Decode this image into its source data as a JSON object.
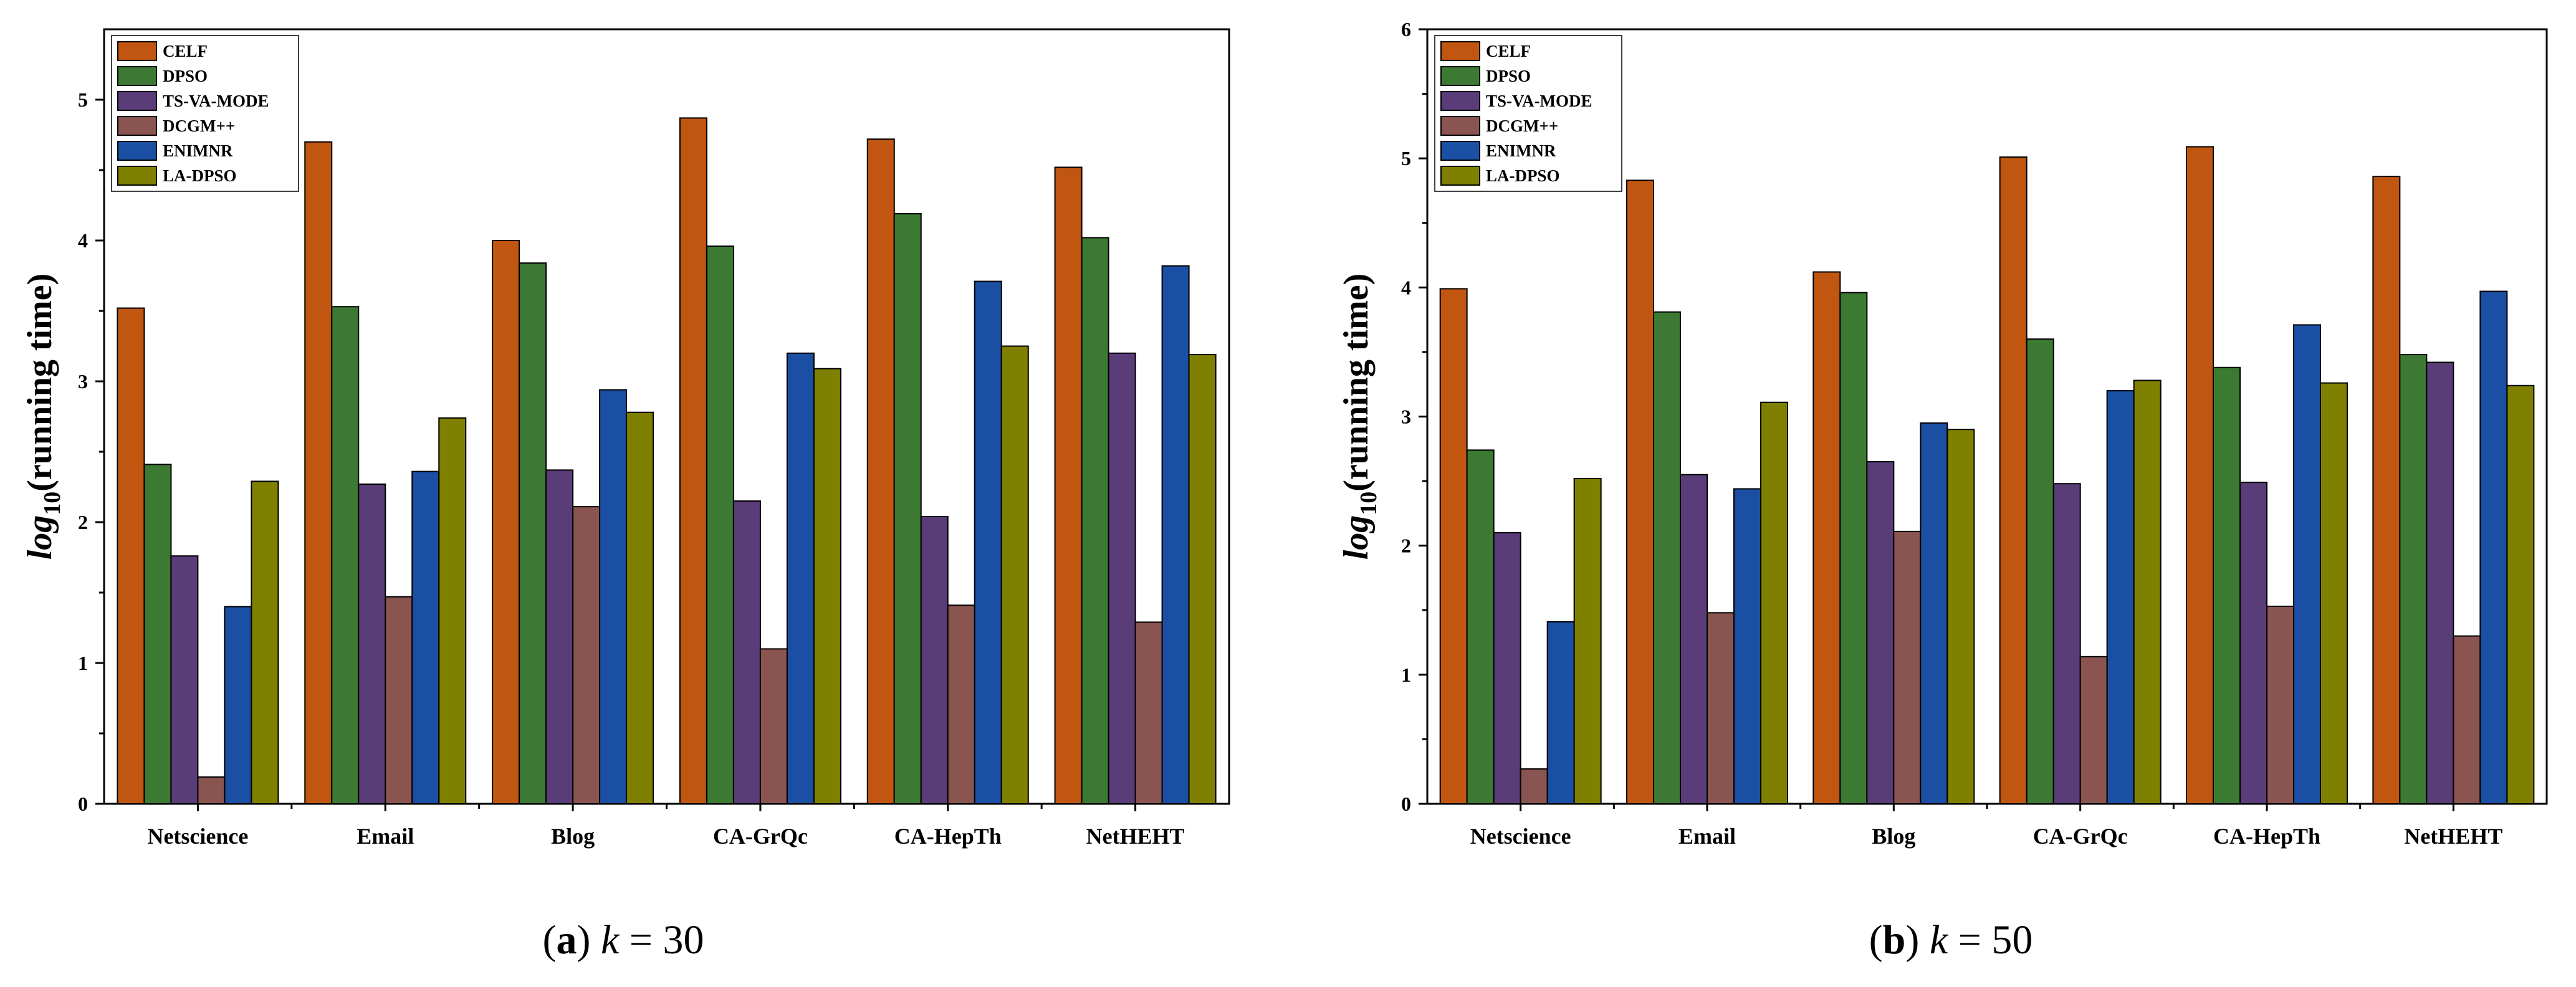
{
  "chart_data": [
    {
      "type": "bar",
      "ylabel_base": "log",
      "ylabel_sub": "10",
      "ylabel_rest": "(running time)",
      "xlabel": "",
      "ylim": [
        0,
        5.5
      ],
      "yticks": [
        0,
        1,
        2,
        3,
        4,
        5
      ],
      "categories": [
        "Netscience",
        "Email",
        "Blog",
        "CA-GrQc",
        "CA-HepTh",
        "NetHEHT"
      ],
      "series": [
        {
          "name": "CELF",
          "color": "#C0560F",
          "values": [
            3.52,
            4.7,
            4.0,
            4.87,
            4.72,
            4.52
          ]
        },
        {
          "name": "DPSO",
          "color": "#3C7A33",
          "values": [
            2.41,
            3.53,
            3.84,
            3.96,
            4.19,
            4.02
          ]
        },
        {
          "name": "TS-VA-MODE",
          "color": "#5A3C78",
          "values": [
            1.76,
            2.27,
            2.37,
            2.15,
            2.04,
            3.2
          ]
        },
        {
          "name": "DCGM++",
          "color": "#8A5450",
          "values": [
            0.19,
            1.47,
            2.11,
            1.1,
            1.41,
            1.29
          ]
        },
        {
          "name": "ENIMNR",
          "color": "#1A4FA3",
          "values": [
            1.4,
            2.36,
            2.94,
            3.2,
            3.71,
            3.82
          ]
        },
        {
          "name": "LA-DPSO",
          "color": "#808000",
          "values": [
            2.29,
            2.74,
            2.78,
            3.09,
            3.25,
            3.19
          ]
        }
      ],
      "caption_label": "a",
      "caption_var": "k",
      "caption_eq": " = 30"
    },
    {
      "type": "bar",
      "ylabel_base": "log",
      "ylabel_sub": "10",
      "ylabel_rest": "(running time)",
      "xlabel": "",
      "ylim": [
        0,
        6
      ],
      "yticks": [
        0,
        1,
        2,
        3,
        4,
        5,
        6
      ],
      "categories": [
        "Netscience",
        "Email",
        "Blog",
        "CA-GrQc",
        "CA-HepTh",
        "NetHEHT"
      ],
      "series": [
        {
          "name": "CELF",
          "color": "#C0560F",
          "values": [
            3.99,
            4.83,
            4.12,
            5.01,
            5.09,
            4.86
          ]
        },
        {
          "name": "DPSO",
          "color": "#3C7A33",
          "values": [
            2.74,
            3.81,
            3.96,
            3.6,
            3.38,
            3.48
          ]
        },
        {
          "name": "TS-VA-MODE",
          "color": "#5A3C78",
          "values": [
            2.1,
            2.55,
            2.65,
            2.48,
            2.49,
            3.42
          ]
        },
        {
          "name": "DCGM++",
          "color": "#8A5450",
          "values": [
            0.27,
            1.48,
            2.11,
            1.14,
            1.53,
            1.3
          ]
        },
        {
          "name": "ENIMNR",
          "color": "#1A4FA3",
          "values": [
            1.41,
            2.44,
            2.95,
            3.2,
            3.71,
            3.97
          ]
        },
        {
          "name": "LA-DPSO",
          "color": "#808000",
          "values": [
            2.52,
            3.11,
            2.9,
            3.28,
            3.26,
            3.24
          ]
        }
      ],
      "caption_label": "b",
      "caption_var": "k",
      "caption_eq": " = 50"
    }
  ]
}
